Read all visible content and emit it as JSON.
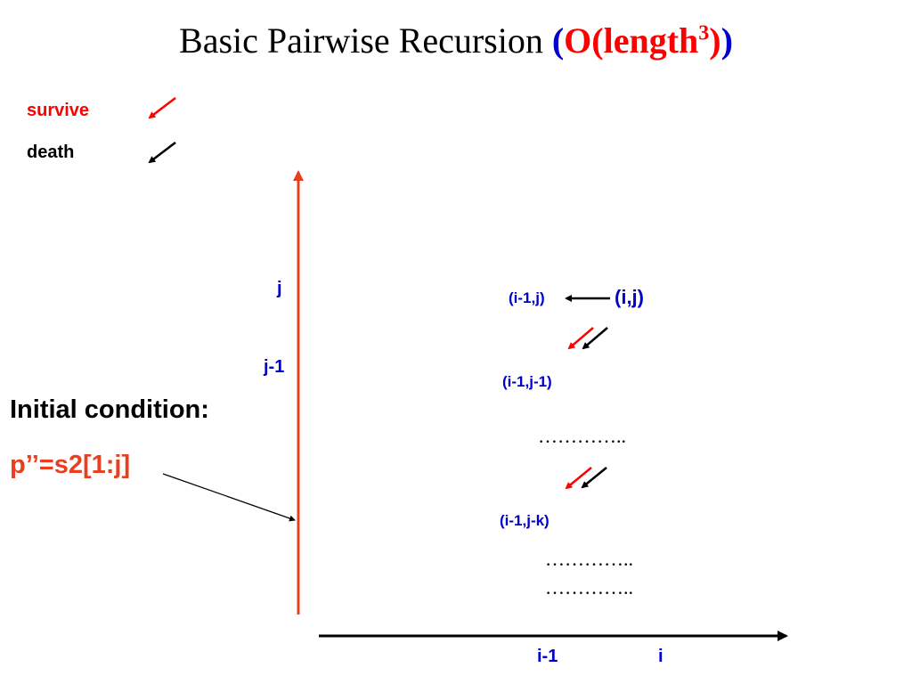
{
  "title": {
    "prefix": "Basic Pairwise Recursion ",
    "open_paren": "(",
    "complexity_base": "O(length",
    "exponent": "3",
    "complexity_close": ")",
    "close_paren": ")"
  },
  "legend": {
    "survive_label": "survive",
    "death_label": "death",
    "survive_color": "#ff0000",
    "death_color": "#000000"
  },
  "axes": {
    "y_labels": {
      "j": "j",
      "j_minus_1": "j-1"
    },
    "x_labels": {
      "i_minus_1": "i-1",
      "i": "i"
    },
    "y_axis_color": "#e8401f",
    "x_axis_color": "#000000"
  },
  "cells": {
    "i_j": "(i,j)",
    "i1_j": "(i-1,j)",
    "i1_j1": "(i-1,j-1)",
    "i1_jk": "(i-1,j-k)"
  },
  "ellipsis": {
    "first": "…………..",
    "second": "…………..",
    "third": "………….."
  },
  "initial_condition": {
    "label": "Initial condition:",
    "value": "p’’=s2[1:j]"
  }
}
